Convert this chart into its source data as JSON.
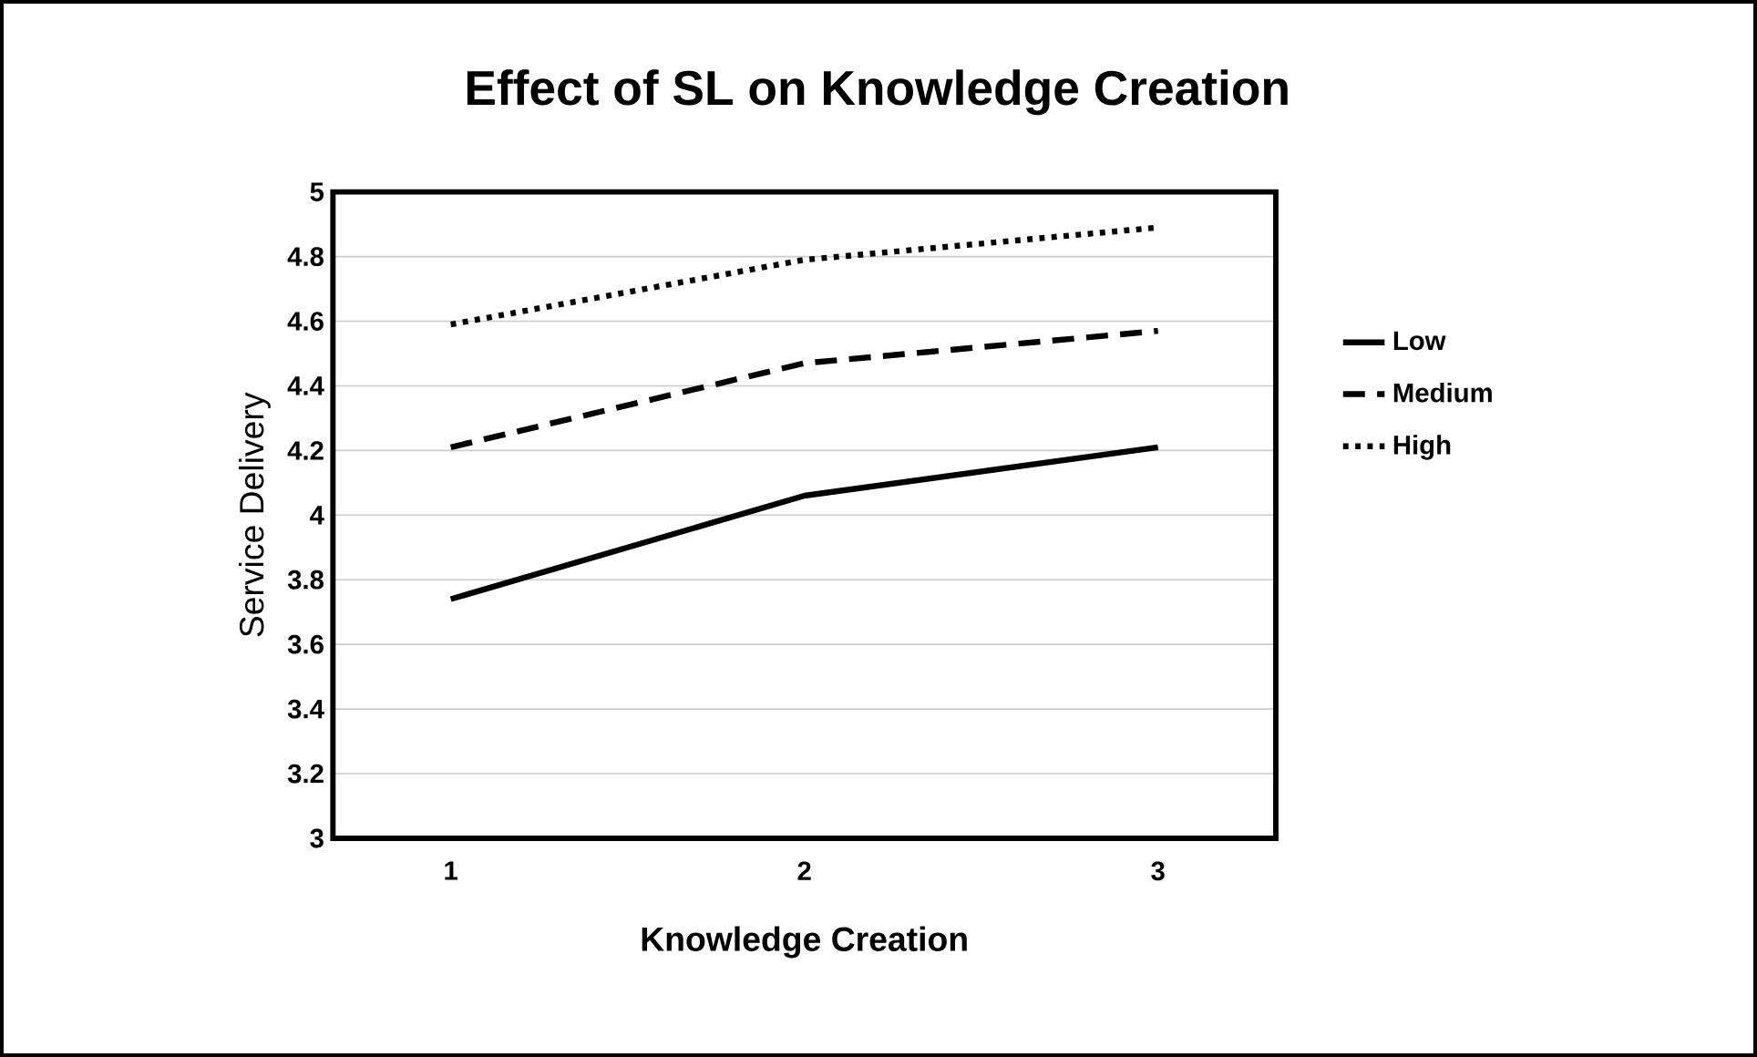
{
  "chart_data": {
    "type": "line",
    "title": "Effect of SL on Knowledge Creation",
    "xlabel": "Knowledge Creation",
    "ylabel": "Service Delivery",
    "categories": [
      "1",
      "2",
      "3"
    ],
    "series": [
      {
        "name": "Low",
        "color": "#000000",
        "line_style": "solid",
        "values": [
          3.74,
          4.06,
          4.21
        ]
      },
      {
        "name": "Medium",
        "color": "#000000",
        "line_style": "dashed",
        "values": [
          4.21,
          4.47,
          4.57
        ]
      },
      {
        "name": "High",
        "color": "#000000",
        "line_style": "dotted",
        "values": [
          4.59,
          4.79,
          4.89
        ]
      }
    ],
    "ylim": [
      3,
      5
    ],
    "yticks": [
      3,
      3.2,
      3.4,
      3.6,
      3.8,
      4,
      4.2,
      4.4,
      4.6,
      4.8,
      5
    ],
    "grid": "y",
    "legend": "right",
    "marker": "none"
  }
}
